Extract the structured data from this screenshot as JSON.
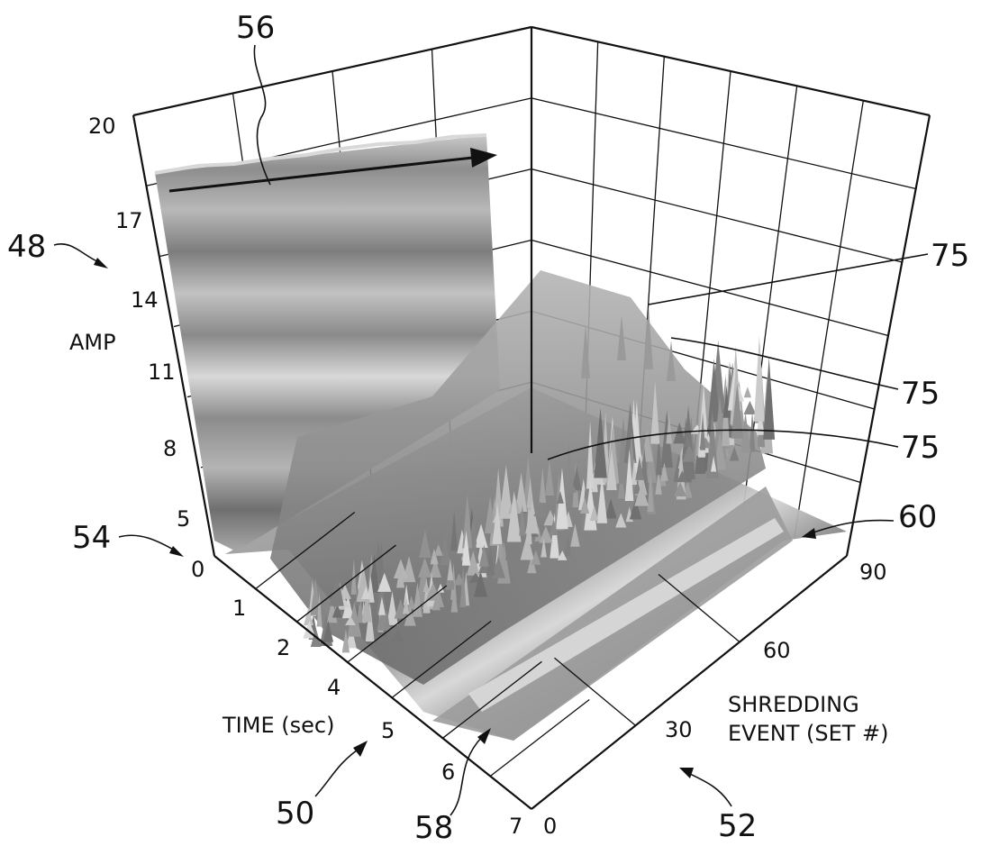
{
  "chart_data": {
    "type": "surface",
    "title": "",
    "zlabel": "AMP",
    "xlabel": "TIME (sec)",
    "ylabel": [
      "SHREDDING",
      "EVENT (SET #)"
    ],
    "z_ticks": [
      "0",
      "5",
      "8",
      "11",
      "14",
      "17",
      "20"
    ],
    "x_ticks": [
      "1",
      "2",
      "4",
      "5",
      "6",
      "7"
    ],
    "y_ticks": [
      "0",
      "30",
      "60",
      "90"
    ],
    "zlim": [
      0,
      20
    ],
    "grid": true,
    "description_regions": [
      {
        "region": "time 0-1 sec, all events",
        "amplitude_level": "high, approx. 17-19"
      },
      {
        "region": "time 1-5 sec, shredding events",
        "amplitude_level": "noisy peaks, approx. 5-14"
      },
      {
        "region": "time 5-7 sec",
        "amplitude_level": "low, approx. 2-4"
      }
    ]
  },
  "reference_numerals": {
    "r56": "56",
    "r48": "48",
    "r54": "54",
    "r50": "50",
    "r58": "58",
    "r52": "52",
    "r60": "60",
    "r75a": "75",
    "r75b": "75",
    "r75c": "75"
  }
}
